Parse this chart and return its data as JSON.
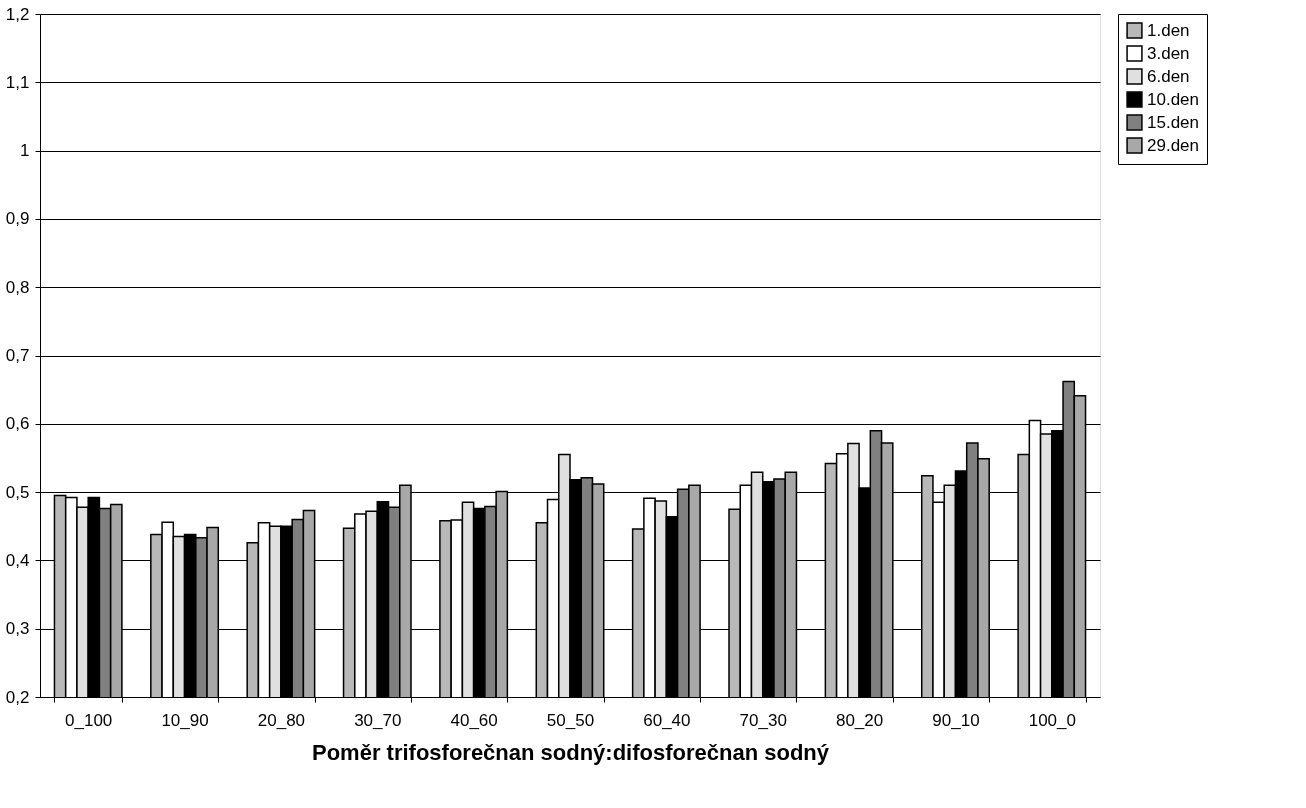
{
  "chart_data": {
    "type": "bar",
    "xlabel": "Poměr trifosforečnan sodný:difosforečnan sodný",
    "categories": [
      "0_100",
      "10_90",
      "20_80",
      "30_70",
      "40_60",
      "50_50",
      "60_40",
      "70_30",
      "80_20",
      "90_10",
      "100_0"
    ],
    "series": [
      {
        "name": "1.den",
        "color": "#b8b8b8",
        "values": [
          0.495,
          0.438,
          0.426,
          0.447,
          0.458,
          0.455,
          0.446,
          0.475,
          0.542,
          0.524,
          0.555
        ]
      },
      {
        "name": "3.den",
        "color": "#ffffff",
        "values": [
          0.492,
          0.456,
          0.455,
          0.468,
          0.459,
          0.489,
          0.491,
          0.51,
          0.556,
          0.485,
          0.605
        ]
      },
      {
        "name": "6.den",
        "color": "#e0e0e0",
        "values": [
          0.478,
          0.435,
          0.45,
          0.472,
          0.485,
          0.555,
          0.487,
          0.529,
          0.571,
          0.51,
          0.585
        ]
      },
      {
        "name": "10.den",
        "color": "#000000",
        "values": [
          0.492,
          0.438,
          0.45,
          0.486,
          0.476,
          0.518,
          0.464,
          0.515,
          0.506,
          0.531,
          0.59
        ]
      },
      {
        "name": "15.den",
        "color": "#808080",
        "values": [
          0.476,
          0.433,
          0.46,
          0.478,
          0.479,
          0.521,
          0.504,
          0.519,
          0.59,
          0.572,
          0.662
        ]
      },
      {
        "name": "29.den",
        "color": "#a8a8a8",
        "values": [
          0.482,
          0.448,
          0.473,
          0.51,
          0.501,
          0.512,
          0.51,
          0.529,
          0.572,
          0.549,
          0.641
        ]
      }
    ],
    "ylim": [
      0.2,
      1.2
    ],
    "yticks": [
      {
        "value": 0.2,
        "label": "0,2"
      },
      {
        "value": 0.3,
        "label": "0,3"
      },
      {
        "value": 0.4,
        "label": "0,4"
      },
      {
        "value": 0.5,
        "label": "0,5"
      },
      {
        "value": 0.6,
        "label": "0,6"
      },
      {
        "value": 0.7,
        "label": "0,7"
      },
      {
        "value": 0.8,
        "label": "0,8"
      },
      {
        "value": 0.9,
        "label": "0,9"
      },
      1,
      {
        "value": 1.1,
        "label": "1,1"
      },
      {
        "value": 1.2,
        "label": "1,2"
      }
    ],
    "grid": "y",
    "legend": "right"
  }
}
